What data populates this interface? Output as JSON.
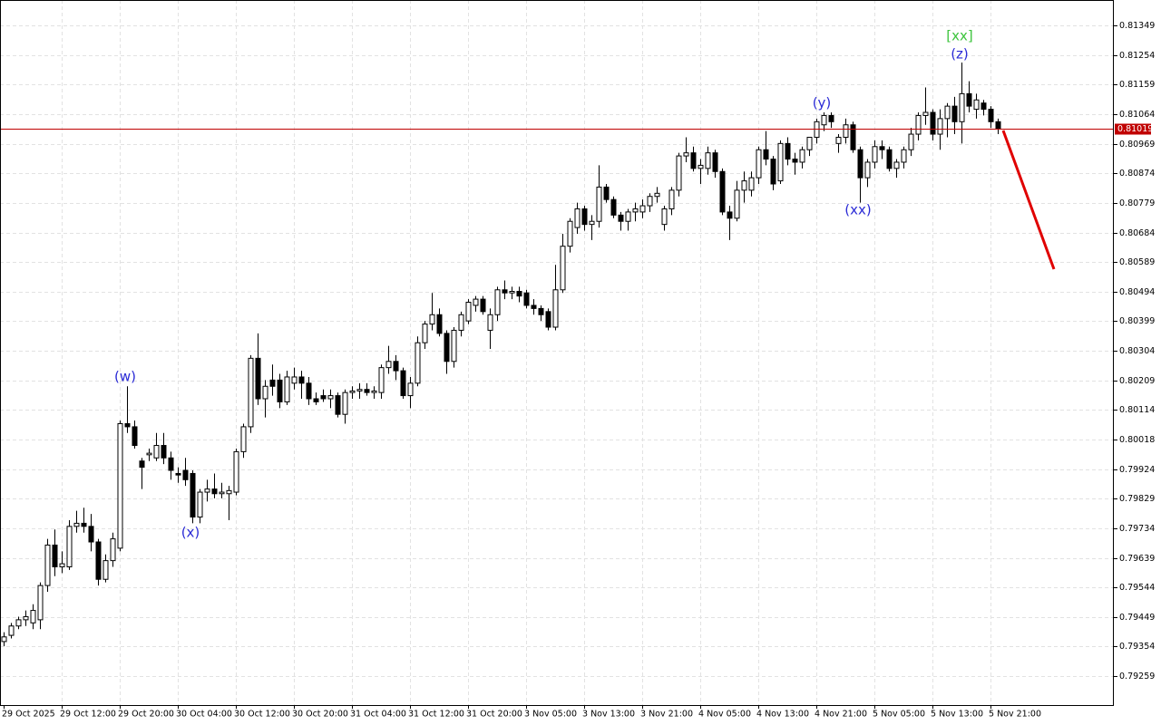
{
  "chart_data": {
    "type": "candlestick",
    "categories": [
      "29 Oct 2025",
      null,
      null,
      null,
      null,
      null,
      null,
      null,
      "29 Oct 12:00",
      null,
      null,
      null,
      null,
      null,
      null,
      null,
      "29 Oct 20:00",
      null,
      null,
      null,
      null,
      null,
      null,
      null,
      "30 Oct 04:00",
      null,
      null,
      null,
      null,
      null,
      null,
      null,
      "30 Oct 12:00",
      null,
      null,
      null,
      null,
      null,
      null,
      null,
      "30 Oct 20:00",
      null,
      null,
      null,
      null,
      null,
      null,
      null,
      "31 Oct 04:00",
      null,
      null,
      null,
      null,
      null,
      null,
      null,
      "31 Oct 12:00",
      null,
      null,
      null,
      null,
      null,
      null,
      null,
      "31 Oct 20:00",
      null,
      null,
      null,
      null,
      null,
      null,
      null,
      "3 Nov 05:00",
      null,
      null,
      null,
      null,
      null,
      null,
      null,
      "3 Nov 13:00",
      null,
      null,
      null,
      null,
      null,
      null,
      null,
      "3 Nov 21:00",
      null,
      null,
      null,
      null,
      null,
      null,
      null,
      "4 Nov 05:00",
      null,
      null,
      null,
      null,
      null,
      null,
      null,
      "4 Nov 13:00",
      null,
      null,
      null,
      null,
      null,
      null,
      null,
      "4 Nov 21:00",
      null,
      null,
      null,
      null,
      null,
      null,
      null,
      "5 Nov 05:00",
      null,
      null,
      null,
      null,
      null,
      null,
      null,
      "5 Nov 13:00",
      null,
      null,
      null,
      null,
      null,
      null,
      null,
      "5 Nov 21:00",
      null
    ],
    "open": [
      0.7937,
      0.7939,
      0.7942,
      0.7944,
      0.7943,
      0.7944,
      0.7955,
      0.7968,
      0.7961,
      0.7961,
      0.7974,
      0.7975,
      0.7974,
      0.7969,
      0.7957,
      0.7963,
      0.7967,
      0.8007,
      0.8006,
      0.7995,
      0.7997,
      0.7996,
      0.8,
      0.7996,
      0.7991,
      0.7992,
      0.7991,
      0.7977,
      0.7985,
      0.7986,
      0.79845,
      0.79845,
      0.7985,
      0.7998,
      0.8006,
      0.8028,
      0.8015,
      0.8021,
      0.8021,
      0.8014,
      0.802,
      0.8022,
      0.802,
      0.8015,
      0.8016,
      0.8015,
      0.8016,
      0.801,
      0.8017,
      0.80175,
      0.8018,
      0.8017,
      0.8017,
      0.8025,
      0.8027,
      0.8024,
      0.8016,
      0.802,
      0.8033,
      0.8039,
      0.8042,
      0.8036,
      0.8027,
      0.8037,
      0.804,
      0.8045,
      0.8047,
      0.8037,
      0.8042,
      0.805,
      0.8049,
      0.80495,
      0.8049,
      0.8045,
      0.8044,
      0.8043,
      0.8038,
      0.805,
      0.8064,
      0.807,
      0.8076,
      0.8071,
      0.8072,
      0.8083,
      0.8079,
      0.8074,
      0.8072,
      0.8075,
      0.8075,
      0.8077,
      0.808,
      0.8071,
      0.8076,
      0.8082,
      0.8093,
      0.8094,
      0.8089,
      0.8089,
      0.8094,
      0.8088,
      0.8075,
      0.8073,
      0.8082,
      0.8082,
      0.8086,
      0.8095,
      0.8092,
      0.8085,
      0.8097,
      0.8092,
      0.8091,
      0.8095,
      0.8099,
      0.8103,
      0.8106,
      0.8097,
      0.8099,
      0.8103,
      0.8095,
      0.8086,
      0.8091,
      0.8096,
      0.8095,
      0.8089,
      0.8091,
      0.8095,
      0.81,
      0.8106,
      0.8107,
      0.81,
      0.8105,
      0.8109,
      0.8104,
      0.8113,
      0.8108,
      0.811,
      0.8108,
      0.8104
    ],
    "high": [
      0.794,
      0.7943,
      0.7945,
      0.7947,
      0.7949,
      0.7956,
      0.797,
      0.7973,
      0.7966,
      0.7976,
      0.7979,
      0.798,
      0.7978,
      0.797,
      0.7965,
      0.7972,
      0.8008,
      0.8019,
      0.8008,
      0.7996,
      0.7999,
      0.8004,
      0.8004,
      0.7998,
      0.7993,
      0.7996,
      0.7992,
      0.7986,
      0.7989,
      0.7991,
      0.7988,
      0.7987,
      0.7999,
      0.8007,
      0.8029,
      0.8036,
      0.8021,
      0.8026,
      0.8023,
      0.8024,
      0.8025,
      0.8024,
      0.8022,
      0.8017,
      0.8018,
      0.8018,
      0.8017,
      0.8018,
      0.8019,
      0.802,
      0.802,
      0.8019,
      0.8026,
      0.8032,
      0.8029,
      0.8025,
      0.8022,
      0.8035,
      0.804,
      0.8049,
      0.8044,
      0.8037,
      0.8038,
      0.8043,
      0.8047,
      0.8048,
      0.8048,
      0.8044,
      0.8051,
      0.8053,
      0.8051,
      0.8051,
      0.805,
      0.8047,
      0.8045,
      0.8044,
      0.8058,
      0.8068,
      0.8073,
      0.8078,
      0.8077,
      0.8074,
      0.809,
      0.8084,
      0.808,
      0.8075,
      0.8076,
      0.8078,
      0.8079,
      0.8081,
      0.8083,
      0.8077,
      0.8083,
      0.8094,
      0.8099,
      0.8096,
      0.8092,
      0.8096,
      0.8095,
      0.8089,
      0.8077,
      0.8085,
      0.8088,
      0.8088,
      0.8096,
      0.8101,
      0.8093,
      0.8098,
      0.8099,
      0.8094,
      0.8096,
      0.8099,
      0.8105,
      0.8107,
      0.8107,
      0.81,
      0.8105,
      0.8104,
      0.8096,
      0.8092,
      0.8098,
      0.8098,
      0.8096,
      0.8092,
      0.8096,
      0.8102,
      0.8107,
      0.8115,
      0.8108,
      0.8108,
      0.811,
      0.8112,
      0.8123,
      0.8117,
      0.8113,
      0.8111,
      0.8109,
      0.8105
    ],
    "low": [
      0.79355,
      0.7938,
      0.7941,
      0.7942,
      0.7941,
      0.7941,
      0.7953,
      0.7958,
      0.7959,
      0.796,
      0.7972,
      0.7972,
      0.7966,
      0.7955,
      0.7956,
      0.7961,
      0.7966,
      0.8004,
      0.7999,
      0.7986,
      0.7995,
      0.7995,
      0.7994,
      0.7989,
      0.7988,
      0.7987,
      0.7975,
      0.7975,
      0.7982,
      0.7983,
      0.7983,
      0.7976,
      0.7984,
      0.7996,
      0.8004,
      0.8013,
      0.8009,
      0.8016,
      0.8012,
      0.8013,
      0.8018,
      0.8015,
      0.8013,
      0.8013,
      0.8014,
      0.8012,
      0.8009,
      0.8007,
      0.8015,
      0.8015,
      0.8016,
      0.8015,
      0.8015,
      0.8023,
      0.8021,
      0.8015,
      0.8012,
      0.8019,
      0.8031,
      0.8037,
      0.8035,
      0.8023,
      0.8025,
      0.8035,
      0.8039,
      0.8043,
      0.8042,
      0.8031,
      0.804,
      0.8047,
      0.8047,
      0.8046,
      0.8044,
      0.8042,
      0.804,
      0.8037,
      0.8037,
      0.8049,
      0.8062,
      0.8068,
      0.8069,
      0.8066,
      0.807,
      0.8078,
      0.8073,
      0.8069,
      0.8069,
      0.8072,
      0.8073,
      0.8075,
      0.8078,
      0.8069,
      0.8074,
      0.808,
      0.8091,
      0.8088,
      0.8084,
      0.8087,
      0.8086,
      0.8074,
      0.8066,
      0.8072,
      0.8078,
      0.808,
      0.8084,
      0.809,
      0.8082,
      0.8084,
      0.809,
      0.8087,
      0.8089,
      0.8093,
      0.8097,
      0.8101,
      0.8102,
      0.8094,
      0.8097,
      0.8094,
      0.8078,
      0.8083,
      0.8089,
      0.8092,
      0.8088,
      0.8086,
      0.8089,
      0.8093,
      0.8098,
      0.8103,
      0.8098,
      0.8095,
      0.8099,
      0.81,
      0.8097,
      0.8107,
      0.8105,
      0.8106,
      0.8102,
      0.81
    ],
    "close": [
      0.79385,
      0.7942,
      0.7944,
      0.7945,
      0.7947,
      0.7955,
      0.7968,
      0.7961,
      0.7962,
      0.7974,
      0.7975,
      0.7974,
      0.7969,
      0.7957,
      0.7963,
      0.797,
      0.8007,
      0.8006,
      0.8,
      0.7993,
      0.79975,
      0.8,
      0.7996,
      0.7992,
      0.79905,
      0.7989,
      0.7977,
      0.7985,
      0.7986,
      0.79845,
      0.7985,
      0.79855,
      0.7998,
      0.8006,
      0.8028,
      0.8015,
      0.8019,
      0.8019,
      0.8014,
      0.8022,
      0.8022,
      0.802,
      0.8015,
      0.8014,
      0.8015,
      0.8016,
      0.801,
      0.8017,
      0.80175,
      0.8018,
      0.8017,
      0.80175,
      0.8025,
      0.8027,
      0.8024,
      0.8016,
      0.802,
      0.8033,
      0.8039,
      0.8042,
      0.8036,
      0.8027,
      0.8037,
      0.8042,
      0.8046,
      0.8047,
      0.8043,
      0.8042,
      0.805,
      0.8049,
      0.80495,
      0.8048,
      0.8045,
      0.8044,
      0.8042,
      0.8038,
      0.805,
      0.8064,
      0.8072,
      0.8076,
      0.8071,
      0.8072,
      0.8083,
      0.8079,
      0.8074,
      0.8072,
      0.8075,
      0.8076,
      0.8077,
      0.808,
      0.8081,
      0.8076,
      0.8082,
      0.8093,
      0.8094,
      0.8089,
      0.809,
      0.8094,
      0.8088,
      0.8075,
      0.8073,
      0.8082,
      0.8085,
      0.8086,
      0.8095,
      0.8092,
      0.8084,
      0.8097,
      0.8092,
      0.8091,
      0.8095,
      0.8099,
      0.8104,
      0.8106,
      0.8104,
      0.8099,
      0.8103,
      0.8095,
      0.8086,
      0.8091,
      0.8096,
      0.8095,
      0.8089,
      0.8091,
      0.8095,
      0.81,
      0.8106,
      0.8107,
      0.81,
      0.8105,
      0.8109,
      0.8104,
      0.8113,
      0.8109,
      0.8111,
      0.8108,
      0.8104,
      0.81019
    ],
    "up_color": "#ffffff",
    "down_color": "#000000",
    "ylim": [
      0.79166,
      0.81431
    ],
    "yticks": [
      0.81349,
      0.81254,
      0.81159,
      0.81064,
      0.80969,
      0.80874,
      0.80779,
      0.80684,
      0.80589,
      0.80494,
      0.80399,
      0.80304,
      0.80209,
      0.80114,
      0.80018,
      0.79924,
      0.79829,
      0.79734,
      0.79639,
      0.79544,
      0.79449,
      0.79354,
      0.79259
    ],
    "grid": true,
    "current_price": 0.81019,
    "current_price_color": "#c00000",
    "annotations": [
      {
        "text": "(w)",
        "color": "#2b2bd6"
      },
      {
        "text": "(x)",
        "color": "#2b2bd6"
      },
      {
        "text": "(y)",
        "color": "#2b2bd6"
      },
      {
        "text": "(xx)",
        "color": "#2b2bd6"
      },
      {
        "text": "(z)",
        "color": "#2b2bd6"
      },
      {
        "text": "[xx]",
        "color": "#3cc43c"
      }
    ]
  }
}
